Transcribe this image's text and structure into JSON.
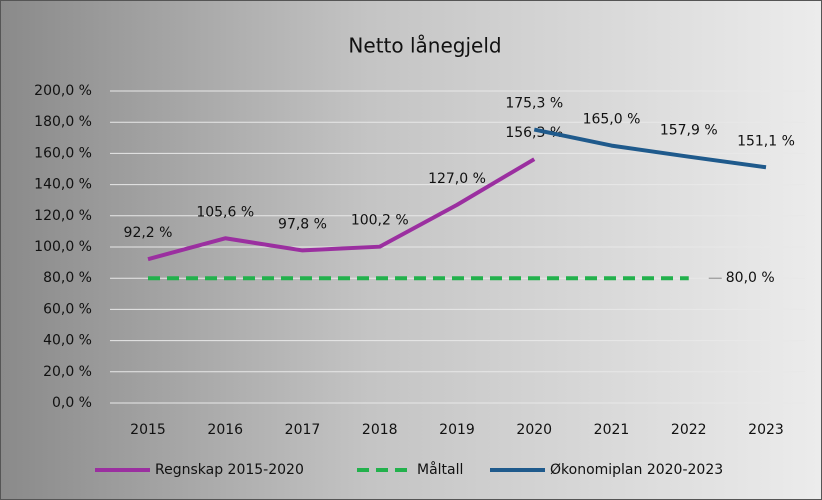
{
  "chart_data": {
    "type": "line",
    "title": "Netto lånegjeld",
    "categories": [
      "2015",
      "2016",
      "2017",
      "2018",
      "2019",
      "2020",
      "2021",
      "2022",
      "2023"
    ],
    "series": [
      {
        "name": "Regnskap 2015-2020",
        "color": "#9b2fa0",
        "dashed": false,
        "values": [
          92.2,
          105.6,
          97.8,
          100.2,
          127.0,
          156.3,
          null,
          null,
          null
        ],
        "value_labels": [
          "92,2 %",
          "105,6 %",
          "97,8 %",
          "100,2 %",
          "127,0 %",
          "156,3 %",
          null,
          null,
          null
        ]
      },
      {
        "name": "Måltall",
        "color": "#22b14c",
        "dashed": true,
        "values": [
          80,
          80,
          80,
          80,
          80,
          80,
          80,
          80,
          null
        ],
        "value_labels": [
          null,
          null,
          null,
          null,
          null,
          null,
          null,
          "80,0 %",
          null
        ]
      },
      {
        "name": "Økonomiplan 2020-2023",
        "color": "#1f5a8c",
        "dashed": false,
        "values": [
          null,
          null,
          null,
          null,
          null,
          175.3,
          165.0,
          157.9,
          151.1
        ],
        "value_labels": [
          null,
          null,
          null,
          null,
          null,
          "175,3 %",
          "165,0 %",
          "157,9 %",
          "151,1 %"
        ]
      }
    ],
    "ylim": [
      0,
      200
    ],
    "yticks": [
      {
        "value": 0,
        "label": "0,0 %"
      },
      {
        "value": 20,
        "label": "20,0 %"
      },
      {
        "value": 40,
        "label": "40,0 %"
      },
      {
        "value": 60,
        "label": "60,0 %"
      },
      {
        "value": 80,
        "label": "80,0 %"
      },
      {
        "value": 100,
        "label": "100,0 %"
      },
      {
        "value": 120,
        "label": "120,0 %"
      },
      {
        "value": 140,
        "label": "140,0 %"
      },
      {
        "value": 160,
        "label": "160,0 %"
      },
      {
        "value": 180,
        "label": "180,0 %"
      },
      {
        "value": 200,
        "label": "200,0 %"
      }
    ],
    "grid": true
  }
}
